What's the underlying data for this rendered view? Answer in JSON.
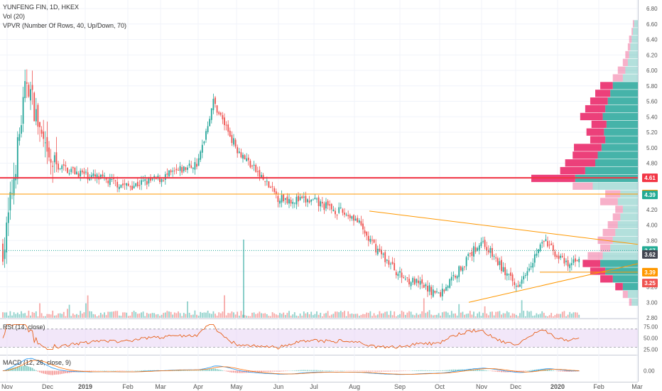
{
  "header": {
    "title": "YUNFENG FIN, 1D, HKEX",
    "vol_label": "Vol (20)",
    "vpvr_label": "VPVR (Number Of Rows, 40, Up/Down, 70)",
    "rsi_label": "RSI (14, close)",
    "macd_label": "MACD (12, 26, close, 9)"
  },
  "colors": {
    "up": "#26a69a",
    "down": "#ef5350",
    "resistance": "#f23645",
    "support": "#ff9800",
    "triangle": "#ff9800",
    "rsi": "#e65100",
    "rsi_band": "#ead7f5",
    "macd_line": "#2196f3",
    "signal_line": "#ff6d00",
    "vpvr_up": "#26a69a",
    "vpvr_down": "#e91e63"
  },
  "chart_data": [
    {
      "type": "candlestick",
      "title": "YUNFENG FIN, 1D, HKEX",
      "ylim": [
        2.8,
        6.8
      ],
      "y_ticks": [
        "6.80",
        "6.60",
        "6.40",
        "6.20",
        "6.00",
        "5.80",
        "5.60",
        "5.40",
        "5.20",
        "5.00",
        "4.80",
        "4.60",
        "4.40",
        "4.20",
        "4.00",
        "3.80",
        "3.60",
        "3.40",
        "3.20",
        "3.00",
        "2.80"
      ],
      "x_ticks": [
        "Nov",
        "Dec",
        "2019",
        "Feb",
        "Mar",
        "Apr",
        "May",
        "Jun",
        "Jul",
        "Aug",
        "Sep",
        "Oct",
        "Nov",
        "Dec",
        "2020",
        "Feb",
        "Mar"
      ],
      "close_path": [
        {
          "x": "Nov",
          "y": 3.7
        },
        {
          "x": "Nov-mid",
          "y": 5.9
        },
        {
          "x": "Dec",
          "y": 4.8
        },
        {
          "x": "2019",
          "y": 4.65
        },
        {
          "x": "Feb",
          "y": 4.5
        },
        {
          "x": "Mar",
          "y": 4.6
        },
        {
          "x": "Apr",
          "y": 4.8
        },
        {
          "x": "Apr-mid",
          "y": 5.6
        },
        {
          "x": "May",
          "y": 5.0
        },
        {
          "x": "Jun",
          "y": 4.35
        },
        {
          "x": "Jul",
          "y": 4.3
        },
        {
          "x": "Aug",
          "y": 4.1
        },
        {
          "x": "Aug-mid",
          "y": 3.8
        },
        {
          "x": "Sep",
          "y": 3.35
        },
        {
          "x": "Oct",
          "y": 3.1
        },
        {
          "x": "Nov",
          "y": 3.8
        },
        {
          "x": "Dec",
          "y": 3.2
        },
        {
          "x": "Dec-mid",
          "y": 3.8
        },
        {
          "x": "2020",
          "y": 3.45
        },
        {
          "x": "2020-mid",
          "y": 3.62
        }
      ],
      "price_labels": [
        {
          "label": "4.61",
          "value": 4.61,
          "kind": "resistance"
        },
        {
          "label": "4.40",
          "value": 4.4,
          "kind": "support"
        },
        {
          "label": "4.39",
          "value": 4.39,
          "kind": "up"
        },
        {
          "label": "3.67",
          "value": 3.67,
          "kind": "up"
        },
        {
          "label": "3.62",
          "value": 3.62,
          "kind": "dark"
        },
        {
          "label": "3.39",
          "value": 3.39,
          "kind": "support"
        },
        {
          "label": "3.25",
          "value": 3.25,
          "kind": "down"
        }
      ],
      "horizontal_lines": [
        {
          "name": "resistance",
          "value": 4.61
        },
        {
          "name": "support",
          "value": 4.4
        }
      ],
      "triangle": {
        "upper": [
          {
            "x": "Aug",
            "y": 4.18
          },
          {
            "x": "2020",
            "y": 3.75
          }
        ],
        "lower": [
          {
            "x": "Oct",
            "y": 3.0
          },
          {
            "x": "2020",
            "y": 3.5
          }
        ]
      },
      "vpvr_rows": [
        {
          "price": 6.6,
          "up": 0.03,
          "down": 0.01
        },
        {
          "price": 6.5,
          "up": 0.04,
          "down": 0.01
        },
        {
          "price": 6.4,
          "up": 0.05,
          "down": 0.02
        },
        {
          "price": 6.3,
          "up": 0.06,
          "down": 0.02
        },
        {
          "price": 6.2,
          "up": 0.07,
          "down": 0.03
        },
        {
          "price": 6.1,
          "up": 0.08,
          "down": 0.04
        },
        {
          "price": 6.0,
          "up": 0.1,
          "down": 0.06
        },
        {
          "price": 5.9,
          "up": 0.12,
          "down": 0.08
        },
        {
          "price": 5.8,
          "up": 0.2,
          "down": 0.1
        },
        {
          "price": 5.7,
          "up": 0.22,
          "down": 0.12
        },
        {
          "price": 5.6,
          "up": 0.24,
          "down": 0.14
        },
        {
          "price": 5.5,
          "up": 0.26,
          "down": 0.16
        },
        {
          "price": 5.4,
          "up": 0.28,
          "down": 0.18
        },
        {
          "price": 5.3,
          "up": 0.25,
          "down": 0.12
        },
        {
          "price": 5.2,
          "up": 0.27,
          "down": 0.14
        },
        {
          "price": 5.1,
          "up": 0.26,
          "down": 0.12
        },
        {
          "price": 5.0,
          "up": 0.29,
          "down": 0.22
        },
        {
          "price": 4.9,
          "up": 0.32,
          "down": 0.2
        },
        {
          "price": 4.8,
          "up": 0.34,
          "down": 0.24
        },
        {
          "price": 4.7,
          "up": 0.42,
          "down": 0.2
        },
        {
          "price": 4.6,
          "up": 0.5,
          "down": 0.35
        },
        {
          "price": 4.5,
          "up": 0.36,
          "down": 0.16
        },
        {
          "price": 4.4,
          "up": 0.14,
          "down": 0.12
        },
        {
          "price": 4.3,
          "up": 0.16,
          "down": 0.14
        },
        {
          "price": 4.2,
          "up": 0.12,
          "down": 0.06
        },
        {
          "price": 4.1,
          "up": 0.14,
          "down": 0.06
        },
        {
          "price": 4.0,
          "up": 0.16,
          "down": 0.08
        },
        {
          "price": 3.9,
          "up": 0.18,
          "down": 0.1
        },
        {
          "price": 3.8,
          "up": 0.2,
          "down": 0.12
        },
        {
          "price": 3.7,
          "up": 0.22,
          "down": 0.08
        },
        {
          "price": 3.6,
          "up": 0.28,
          "down": 0.12
        },
        {
          "price": 3.5,
          "up": 0.3,
          "down": 0.14
        },
        {
          "price": 3.4,
          "up": 0.26,
          "down": 0.12
        },
        {
          "price": 3.3,
          "up": 0.2,
          "down": 0.1
        },
        {
          "price": 3.2,
          "up": 0.12,
          "down": 0.06
        },
        {
          "price": 3.1,
          "up": 0.08,
          "down": 0.04
        },
        {
          "price": 3.0,
          "up": 0.05,
          "down": 0.02
        }
      ]
    },
    {
      "type": "line",
      "title": "RSI (14, close)",
      "ylim": [
        15,
        90
      ],
      "y_ticks": [
        "75.00",
        "50.00",
        "25.00"
      ],
      "bands": [
        30,
        70
      ]
    },
    {
      "type": "line",
      "title": "MACD (12, 26, close, 9)",
      "y_ticks": [
        "0.00"
      ]
    }
  ]
}
